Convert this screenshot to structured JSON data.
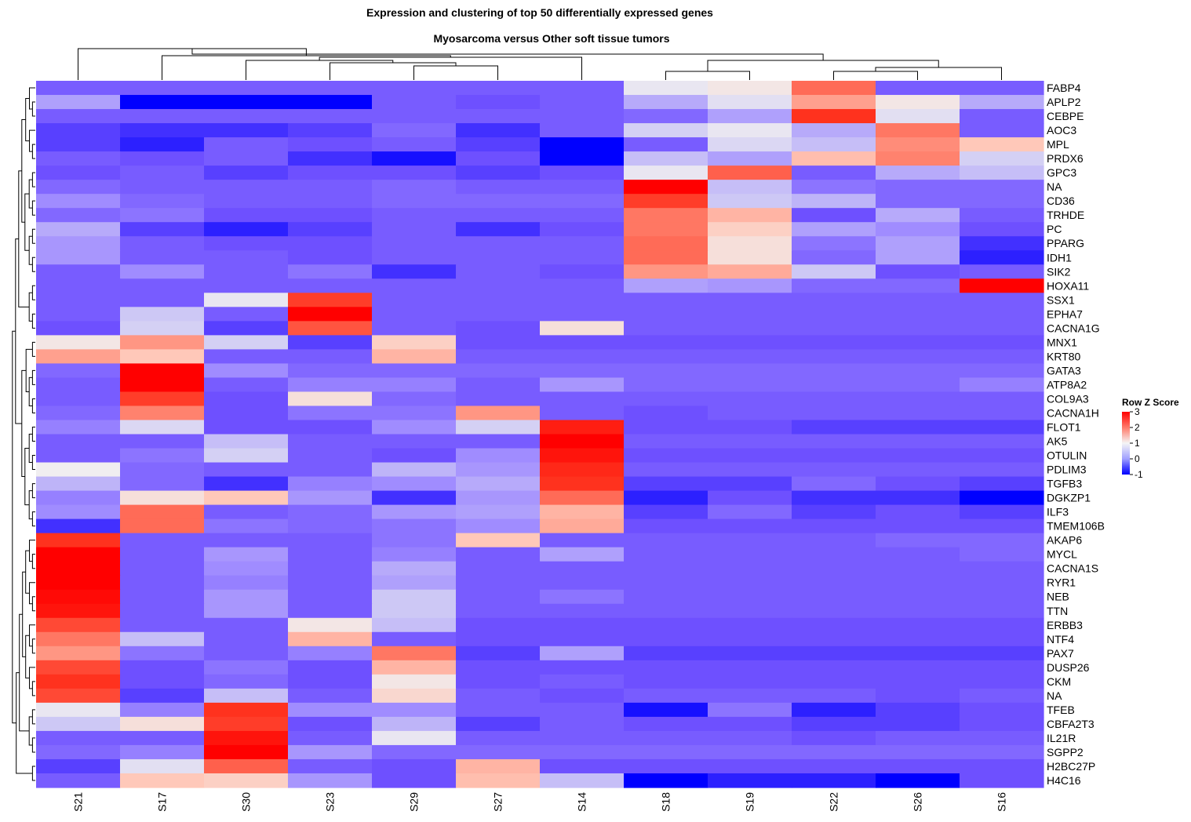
{
  "chart_data": {
    "type": "heatmap",
    "title": "Expression and clustering of top 50 differentially expressed genes",
    "subtitle": "Myosarcoma versus Other soft tissue tumors",
    "columns": [
      "S21",
      "S17",
      "S30",
      "S23",
      "S29",
      "S27",
      "S14",
      "S18",
      "S19",
      "S22",
      "S26",
      "S16"
    ],
    "rows": [
      "FABP4",
      "APLP2",
      "CEBPE",
      "AOC3",
      "MPL",
      "PRDX6",
      "GPC3",
      "NA",
      "CD36",
      "TRHDE",
      "PC",
      "PPARG",
      "IDH1",
      "SIK2",
      "HOXA11",
      "SSX1",
      "EPHA7",
      "CACNA1G",
      "MNX1",
      "KRT80",
      "GATA3",
      "ATP8A2",
      "COL9A3",
      "CACNA1H",
      "FLOT1",
      "AK5",
      "OTULIN",
      "PDLIM3",
      "TGFB3",
      "DGKZP1",
      "ILF3",
      "TMEM106B",
      "AKAP6",
      "MYCL",
      "CACNA1S",
      "RYR1",
      "NEB",
      "TTN",
      "ERBB3",
      "NTF4",
      "PAX7",
      "DUSP26",
      "CKM",
      "NA",
      "TFEB",
      "CBFA2T3",
      "IL21R",
      "SGPP2",
      "H2BC27P",
      "H4C16"
    ],
    "values": [
      [
        -0.4,
        -0.4,
        -0.4,
        -0.4,
        -0.4,
        -0.4,
        -0.4,
        1.0,
        1.2,
        2.5,
        -0.4,
        -0.4
      ],
      [
        0.2,
        -1.0,
        -1.0,
        -1.0,
        -0.4,
        -0.5,
        -0.4,
        0.3,
        0.9,
        2.0,
        1.2,
        0.3
      ],
      [
        -0.4,
        -0.4,
        -0.4,
        -0.4,
        -0.4,
        -0.4,
        -0.4,
        -0.3,
        0.2,
        3.0,
        0.9,
        -0.4
      ],
      [
        -0.6,
        -0.7,
        -0.7,
        -0.6,
        -0.3,
        -0.7,
        -0.4,
        0.7,
        1.0,
        0.3,
        2.4,
        -0.4
      ],
      [
        -0.6,
        -0.8,
        -0.4,
        -0.5,
        -0.4,
        -0.6,
        -1.0,
        -0.4,
        0.8,
        0.5,
        2.2,
        1.6
      ],
      [
        -0.4,
        -0.5,
        -0.4,
        -0.7,
        -0.9,
        -0.5,
        -1.0,
        0.5,
        0.2,
        1.7,
        2.3,
        0.7
      ],
      [
        -0.5,
        -0.4,
        -0.6,
        -0.5,
        -0.5,
        -0.6,
        -0.5,
        1.0,
        2.6,
        -0.4,
        0.3,
        0.5
      ],
      [
        -0.3,
        -0.4,
        -0.4,
        -0.4,
        -0.3,
        -0.4,
        -0.4,
        3.5,
        0.5,
        -0.2,
        -0.3,
        -0.3
      ],
      [
        0.0,
        -0.3,
        -0.4,
        -0.4,
        -0.3,
        -0.3,
        -0.3,
        2.9,
        0.6,
        0.4,
        -0.3,
        -0.3
      ],
      [
        -0.3,
        -0.2,
        -0.5,
        -0.5,
        -0.4,
        -0.4,
        -0.4,
        2.4,
        1.8,
        -0.5,
        0.3,
        -0.4
      ],
      [
        0.3,
        -0.6,
        -0.8,
        -0.6,
        -0.4,
        -0.7,
        -0.5,
        2.4,
        1.5,
        0.2,
        0.0,
        -0.5
      ],
      [
        0.1,
        -0.4,
        -0.5,
        -0.5,
        -0.4,
        -0.4,
        -0.4,
        2.5,
        1.3,
        -0.2,
        0.2,
        -0.7
      ],
      [
        0.1,
        -0.4,
        -0.4,
        -0.5,
        -0.4,
        -0.4,
        -0.4,
        2.5,
        1.3,
        -0.3,
        0.2,
        -0.8
      ],
      [
        -0.4,
        0.0,
        -0.4,
        -0.2,
        -0.7,
        -0.4,
        -0.5,
        2.1,
        1.9,
        0.6,
        -0.5,
        -0.4
      ],
      [
        -0.4,
        -0.4,
        -0.4,
        -0.4,
        -0.4,
        -0.4,
        -0.4,
        0.2,
        0.1,
        -0.3,
        -0.3,
        3.6
      ],
      [
        -0.4,
        -0.4,
        1.0,
        2.9,
        -0.4,
        -0.4,
        -0.4,
        -0.4,
        -0.4,
        -0.4,
        -0.4,
        -0.4
      ],
      [
        -0.4,
        0.6,
        -0.4,
        3.5,
        -0.4,
        -0.4,
        -0.4,
        -0.4,
        -0.4,
        -0.4,
        -0.4,
        -0.4
      ],
      [
        -0.5,
        0.7,
        -0.6,
        2.7,
        -0.4,
        -0.5,
        1.3,
        -0.4,
        -0.4,
        -0.4,
        -0.4,
        -0.4
      ],
      [
        1.2,
        2.1,
        0.7,
        -0.6,
        1.5,
        -0.5,
        -0.5,
        -0.5,
        -0.5,
        -0.5,
        -0.5,
        -0.5
      ],
      [
        2.0,
        1.6,
        -0.4,
        -0.4,
        1.8,
        -0.4,
        -0.4,
        -0.4,
        -0.4,
        -0.4,
        -0.4,
        -0.4
      ],
      [
        -0.3,
        3.7,
        0.0,
        -0.3,
        -0.3,
        -0.3,
        -0.3,
        -0.3,
        -0.3,
        -0.3,
        -0.3,
        -0.3
      ],
      [
        -0.4,
        3.7,
        -0.4,
        -0.1,
        -0.1,
        -0.4,
        0.1,
        -0.3,
        -0.3,
        -0.3,
        -0.3,
        -0.1
      ],
      [
        -0.4,
        2.9,
        -0.5,
        1.3,
        -0.3,
        -0.4,
        -0.4,
        -0.4,
        -0.4,
        -0.4,
        -0.4,
        -0.4
      ],
      [
        -0.3,
        2.3,
        -0.5,
        -0.2,
        -0.2,
        2.1,
        -0.4,
        -0.5,
        -0.4,
        -0.4,
        -0.4,
        -0.4
      ],
      [
        -0.1,
        0.8,
        -0.5,
        -0.5,
        0.0,
        0.7,
        3.2,
        -0.5,
        -0.5,
        -0.6,
        -0.6,
        -0.6
      ],
      [
        -0.4,
        -0.4,
        0.5,
        -0.4,
        -0.4,
        -0.4,
        3.7,
        -0.4,
        -0.4,
        -0.4,
        -0.4,
        -0.4
      ],
      [
        -0.4,
        -0.2,
        0.7,
        -0.4,
        -0.5,
        0.0,
        3.3,
        -0.5,
        -0.5,
        -0.5,
        -0.5,
        -0.5
      ],
      [
        1.1,
        -0.3,
        -0.4,
        -0.4,
        0.4,
        0.1,
        3.1,
        -0.4,
        -0.4,
        -0.4,
        -0.4,
        -0.4
      ],
      [
        0.4,
        -0.3,
        -0.7,
        -0.1,
        0.0,
        0.3,
        3.0,
        -0.6,
        -0.6,
        -0.3,
        -0.5,
        -0.6
      ],
      [
        -0.1,
        1.3,
        1.6,
        0.1,
        -0.7,
        0.1,
        2.5,
        -0.8,
        -0.5,
        -0.7,
        -0.7,
        -1.0
      ],
      [
        0.0,
        2.5,
        -0.4,
        -0.3,
        0.1,
        0.2,
        1.8,
        -0.6,
        -0.3,
        -0.6,
        -0.5,
        -0.6
      ],
      [
        -0.7,
        2.5,
        -0.2,
        -0.3,
        -0.2,
        0.0,
        1.9,
        -0.5,
        -0.5,
        -0.5,
        -0.5,
        -0.5
      ],
      [
        3.0,
        -0.4,
        -0.4,
        -0.4,
        -0.2,
        1.6,
        -0.4,
        -0.4,
        -0.4,
        -0.4,
        -0.3,
        -0.3
      ],
      [
        3.6,
        -0.4,
        0.1,
        -0.4,
        -0.1,
        -0.4,
        0.2,
        -0.4,
        -0.4,
        -0.4,
        -0.4,
        -0.3
      ],
      [
        3.6,
        -0.4,
        0.0,
        -0.4,
        0.3,
        -0.4,
        -0.4,
        -0.4,
        -0.4,
        -0.4,
        -0.4,
        -0.4
      ],
      [
        3.6,
        -0.4,
        -0.1,
        -0.4,
        0.2,
        -0.4,
        -0.4,
        -0.4,
        -0.4,
        -0.4,
        -0.4,
        -0.4
      ],
      [
        3.4,
        -0.4,
        0.1,
        -0.4,
        0.6,
        -0.4,
        -0.2,
        -0.4,
        -0.4,
        -0.4,
        -0.4,
        -0.4
      ],
      [
        3.3,
        -0.4,
        0.1,
        -0.4,
        0.6,
        -0.4,
        -0.4,
        -0.4,
        -0.4,
        -0.4,
        -0.4,
        -0.4
      ],
      [
        2.8,
        -0.4,
        -0.4,
        1.2,
        0.5,
        -0.5,
        -0.5,
        -0.5,
        -0.5,
        -0.5,
        -0.5,
        -0.5
      ],
      [
        2.4,
        0.5,
        -0.4,
        1.8,
        -0.4,
        -0.5,
        -0.5,
        -0.5,
        -0.5,
        -0.5,
        -0.5,
        -0.5
      ],
      [
        2.1,
        -0.2,
        -0.4,
        -0.1,
        2.4,
        -0.6,
        0.2,
        -0.6,
        -0.6,
        -0.6,
        -0.6,
        -0.6
      ],
      [
        2.8,
        -0.5,
        -0.2,
        -0.5,
        1.8,
        -0.5,
        -0.5,
        -0.5,
        -0.5,
        -0.5,
        -0.5,
        -0.5
      ],
      [
        3.0,
        -0.5,
        -0.3,
        -0.5,
        1.2,
        -0.5,
        -0.4,
        -0.5,
        -0.5,
        -0.5,
        -0.5,
        -0.5
      ],
      [
        2.8,
        -0.6,
        0.5,
        -0.4,
        1.4,
        -0.4,
        -0.5,
        -0.4,
        -0.4,
        -0.4,
        -0.5,
        -0.4
      ],
      [
        1.0,
        -0.1,
        3.0,
        0.0,
        0.0,
        -0.4,
        -0.4,
        -0.9,
        -0.2,
        -0.8,
        -0.6,
        -0.5
      ],
      [
        0.6,
        1.3,
        2.9,
        -0.5,
        0.4,
        -0.6,
        -0.4,
        -0.5,
        -0.5,
        -0.6,
        -0.6,
        -0.5
      ],
      [
        -0.4,
        -0.4,
        3.3,
        -0.4,
        1.0,
        -0.4,
        -0.4,
        -0.4,
        -0.4,
        -0.5,
        -0.4,
        -0.4
      ],
      [
        -0.3,
        -0.1,
        3.7,
        0.1,
        -0.3,
        -0.3,
        -0.3,
        -0.3,
        -0.3,
        -0.3,
        -0.3,
        -0.3
      ],
      [
        -0.6,
        0.9,
        2.6,
        -0.4,
        -0.5,
        1.8,
        -0.5,
        -0.5,
        -0.5,
        -0.5,
        -0.5,
        -0.5
      ],
      [
        -0.4,
        1.6,
        1.5,
        0.1,
        -0.5,
        1.7,
        0.5,
        -1.0,
        -0.8,
        -0.8,
        -1.0,
        -0.5
      ]
    ],
    "legend": {
      "title": "Row Z Score",
      "ticks": [
        3,
        2,
        1,
        0,
        -1
      ],
      "range": [
        -1,
        3
      ],
      "placement": "right"
    },
    "colors": {
      "low": "#0000ff",
      "mid": "#f5f5f5",
      "high": "#ff0000"
    }
  }
}
